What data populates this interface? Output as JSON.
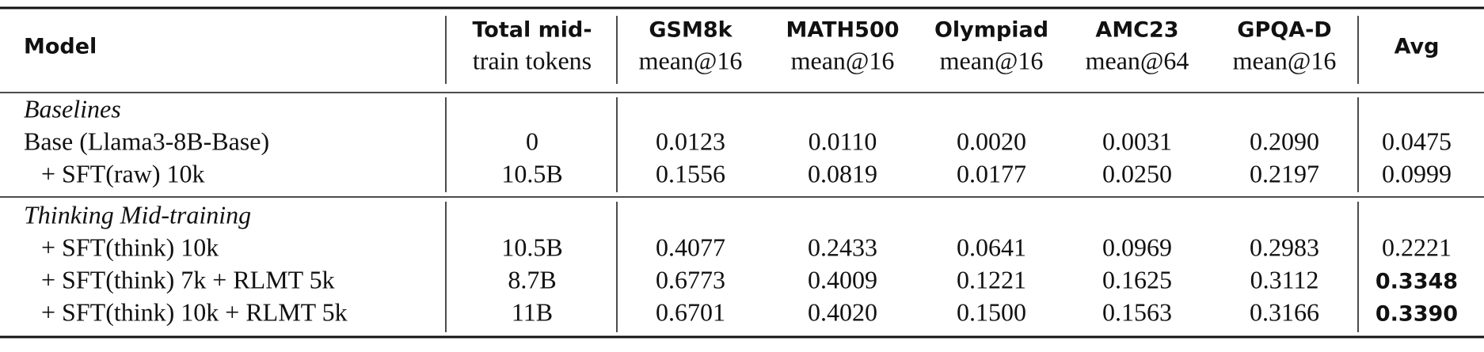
{
  "table": {
    "columns": [
      {
        "lines": [
          "Model"
        ]
      },
      {
        "lines": [
          "Total mid-",
          "train tokens"
        ]
      },
      {
        "lines": [
          "GSM8k",
          "mean@16"
        ]
      },
      {
        "lines": [
          "MATH500",
          "mean@16"
        ]
      },
      {
        "lines": [
          "Olympiad",
          "mean@16"
        ]
      },
      {
        "lines": [
          "AMC23",
          "mean@64"
        ]
      },
      {
        "lines": [
          "GPQA-D",
          "mean@16"
        ]
      },
      {
        "lines": [
          "Avg"
        ]
      }
    ],
    "sections": [
      {
        "title": "Baselines",
        "rows": [
          {
            "cells": [
              "Base (Llama3-8B-Base)",
              "0",
              "0.0123",
              "0.0110",
              "0.0020",
              "0.0031",
              "0.2090",
              "0.0475"
            ]
          },
          {
            "cells": [
              "+ SFT(raw) 10k",
              "10.5B",
              "0.1556",
              "0.0819",
              "0.0177",
              "0.0250",
              "0.2197",
              "0.0999"
            ]
          }
        ]
      },
      {
        "title": "Thinking Mid-training",
        "rows": [
          {
            "cells": [
              "+ SFT(think) 10k",
              "10.5B",
              "0.4077",
              "0.2433",
              "0.0641",
              "0.0969",
              "0.2983",
              "0.2221"
            ]
          },
          {
            "cells": [
              "+ SFT(think) 7k + RLMT 5k",
              "8.7B",
              "0.6773",
              "0.4009",
              "0.1221",
              "0.1625",
              "0.3112",
              "0.3348"
            ],
            "bold_avg": true
          },
          {
            "cells": [
              "+ SFT(think) 10k + RLMT 5k",
              "11B",
              "0.6701",
              "0.4020",
              "0.1500",
              "0.1563",
              "0.3166",
              "0.3390"
            ],
            "bold_avg": true
          }
        ]
      }
    ]
  }
}
